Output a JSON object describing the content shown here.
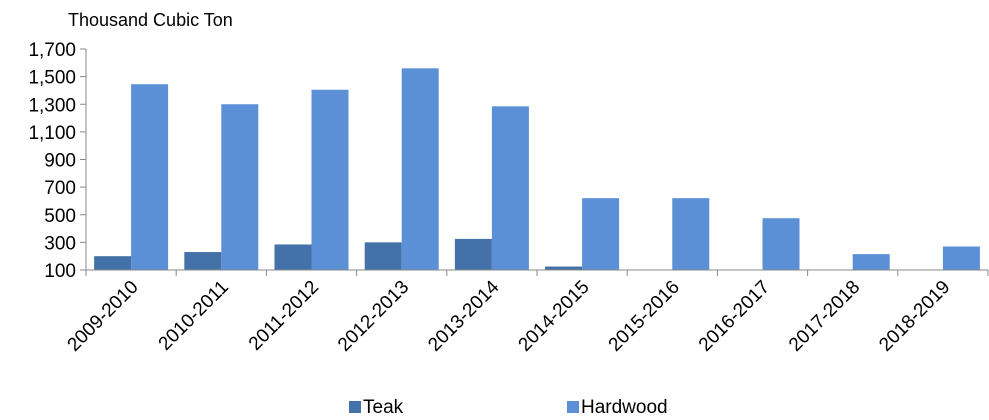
{
  "chart_data": {
    "type": "bar",
    "title": "",
    "unit_label": "Thousand Cubic  Ton",
    "xlabel": "",
    "ylabel": "",
    "categories": [
      "2009-2010",
      "2010-2011",
      "2011-2012",
      "2012-2013",
      "2013-2014",
      "2014-2015",
      "2015-2016",
      "2016-2017",
      "2017-2018",
      "2018-2019"
    ],
    "series": [
      {
        "name": "Teak",
        "color": "#4472a8",
        "values": [
          200,
          230,
          285,
          300,
          325,
          125,
          100,
          100,
          100,
          100
        ]
      },
      {
        "name": "Hardwood",
        "color": "#5b8fd6",
        "values": [
          1445,
          1300,
          1405,
          1560,
          1285,
          620,
          620,
          475,
          215,
          270
        ]
      }
    ],
    "y_ticks": [
      "1,700",
      "1,500",
      "1,300",
      "1,100",
      "900",
      "700",
      "500",
      "300",
      "100"
    ],
    "y_tick_values": [
      1700,
      1500,
      1300,
      1100,
      900,
      700,
      500,
      300,
      100
    ],
    "ylim": [
      100,
      1700
    ],
    "grid": false,
    "legend_position": "bottom"
  }
}
